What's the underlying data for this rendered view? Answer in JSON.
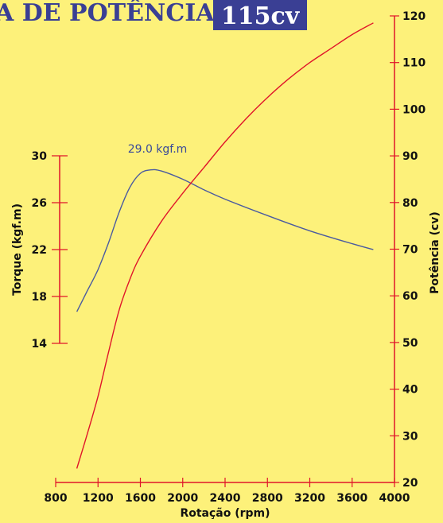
{
  "header": {
    "title_main": "A DE POTÊNCIA",
    "badge": "115cv"
  },
  "colors": {
    "background": "#fdf17a",
    "torque": "#4a5aa0",
    "power": "#e0152a",
    "title": "#3a3f94",
    "badge_bg": "#3a3f94"
  },
  "chart_data": {
    "type": "line",
    "xlabel": "Rotação (rpm)",
    "ylabel_left": "Torque (kgf.m)",
    "ylabel_right": "Potência (cv)",
    "x_ticks": [
      800,
      1200,
      1600,
      2000,
      2400,
      2800,
      3200,
      3600,
      4000
    ],
    "y_left_ticks": [
      14,
      18,
      22,
      26,
      30
    ],
    "y_right_ticks": [
      20,
      30,
      40,
      50,
      60,
      70,
      80,
      90,
      100,
      110,
      120
    ],
    "xlim": [
      800,
      4000
    ],
    "ylim_left": [
      14,
      30
    ],
    "ylim_right": [
      20,
      120
    ],
    "annotation": "29.0 kgf.m",
    "series": [
      {
        "key": "torque",
        "axis": "left",
        "x": [
          1000,
          1100,
          1200,
          1300,
          1400,
          1500,
          1600,
          1700,
          1800,
          2000,
          2200,
          2400,
          2800,
          3200,
          3600,
          3800
        ],
        "y": [
          16.7,
          18.5,
          20.3,
          22.6,
          25.2,
          27.3,
          28.5,
          28.8,
          28.7,
          28.0,
          27.1,
          26.3,
          24.9,
          23.6,
          22.5,
          22.0
        ]
      },
      {
        "key": "power",
        "axis": "right",
        "x": [
          1000,
          1100,
          1200,
          1300,
          1400,
          1500,
          1600,
          1800,
          2000,
          2200,
          2400,
          2600,
          2800,
          3000,
          3200,
          3400,
          3600,
          3800
        ],
        "y": [
          23,
          30.5,
          38.5,
          48,
          57,
          63.5,
          68.5,
          76,
          82,
          87.5,
          93,
          98,
          102.5,
          106.5,
          110,
          113,
          116,
          118.5
        ]
      }
    ]
  }
}
